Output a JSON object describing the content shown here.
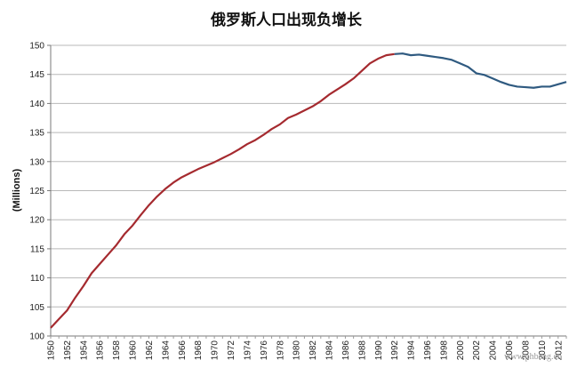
{
  "chart_data": {
    "type": "line",
    "title": "俄罗斯人口出现负增长",
    "xlabel": "",
    "ylabel": "(Millions)",
    "ylim": [
      100,
      150
    ],
    "yticks": [
      100,
      105,
      110,
      115,
      120,
      125,
      130,
      135,
      140,
      145,
      150
    ],
    "xlim": [
      1950,
      2013
    ],
    "xticks": [
      "1950",
      "1952",
      "1954",
      "1956",
      "1958",
      "1960",
      "1962",
      "1964",
      "1966",
      "1968",
      "1970",
      "1972",
      "1974",
      "1976",
      "1978",
      "1980",
      "1982",
      "1984",
      "1986",
      "1988",
      "1990",
      "1992",
      "1994",
      "1996",
      "1998",
      "2000",
      "2002",
      "2004",
      "2006",
      "2008",
      "2010",
      "2012"
    ],
    "grid": true,
    "legend": "none",
    "series": [
      {
        "color_pre": "#a52a2f",
        "color_post": "#2f5a80",
        "split_year": 1992,
        "x": [
          1950,
          1951,
          1952,
          1953,
          1954,
          1955,
          1956,
          1957,
          1958,
          1959,
          1960,
          1961,
          1962,
          1963,
          1964,
          1965,
          1966,
          1967,
          1968,
          1969,
          1970,
          1971,
          1972,
          1973,
          1974,
          1975,
          1976,
          1977,
          1978,
          1979,
          1980,
          1981,
          1982,
          1983,
          1984,
          1985,
          1986,
          1987,
          1988,
          1989,
          1990,
          1991,
          1992,
          1993,
          1994,
          1995,
          1996,
          1997,
          1998,
          1999,
          2000,
          2001,
          2002,
          2003,
          2004,
          2005,
          2006,
          2007,
          2008,
          2009,
          2010,
          2011,
          2012,
          2013
        ],
        "y": [
          101.4,
          102.9,
          104.4,
          106.6,
          108.6,
          110.8,
          112.4,
          114.0,
          115.6,
          117.5,
          119.0,
          120.8,
          122.5,
          124.0,
          125.3,
          126.4,
          127.3,
          128.0,
          128.7,
          129.3,
          129.9,
          130.6,
          131.3,
          132.1,
          133.0,
          133.7,
          134.6,
          135.6,
          136.4,
          137.5,
          138.1,
          138.8,
          139.5,
          140.4,
          141.5,
          142.4,
          143.3,
          144.3,
          145.6,
          146.9,
          147.7,
          148.3,
          148.5,
          148.6,
          148.3,
          148.4,
          148.2,
          148.0,
          147.8,
          147.5,
          146.9,
          146.3,
          145.2,
          144.9,
          144.3,
          143.7,
          143.2,
          142.9,
          142.8,
          142.7,
          142.9,
          142.9,
          143.3,
          143.7
        ]
      }
    ]
  },
  "watermark": "www.phbang.cn"
}
